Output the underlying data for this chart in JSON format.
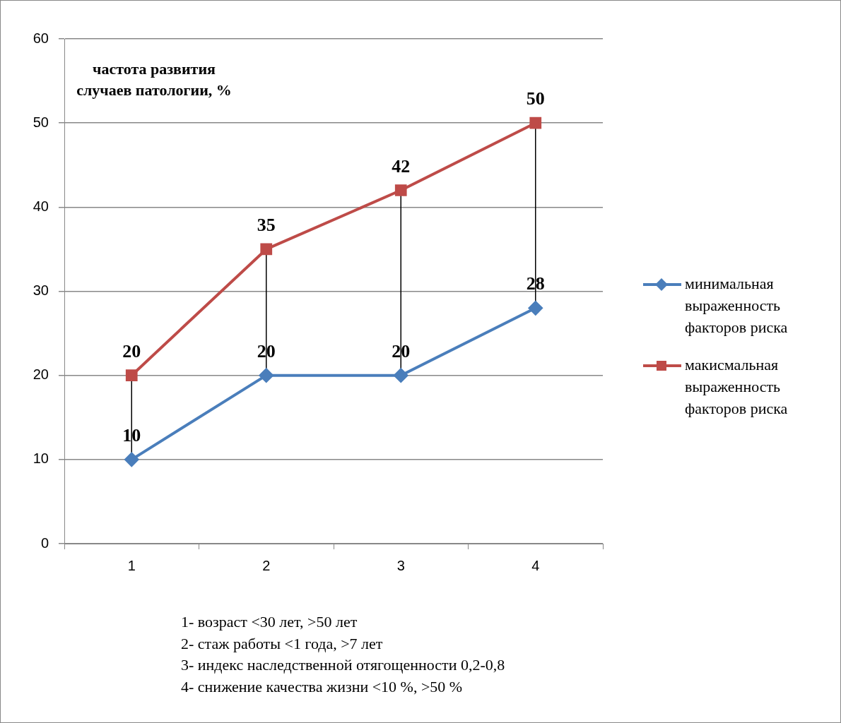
{
  "chart_data": {
    "type": "line",
    "ylabel": "частота развития случаев патологии, %",
    "categories": [
      "1",
      "2",
      "3",
      "4"
    ],
    "series": [
      {
        "name": "минимальная выраженность факторов риска",
        "color": "#4a7ebb",
        "marker": "diamond",
        "values": [
          10,
          20,
          20,
          28
        ]
      },
      {
        "name": "макисмальная выраженность факторов риска",
        "color": "#be4b48",
        "marker": "square",
        "values": [
          20,
          35,
          42,
          50
        ]
      }
    ],
    "ylim": [
      0,
      60
    ],
    "yticks": [
      0,
      10,
      20,
      30,
      40,
      50,
      60
    ],
    "grid": "y",
    "legend": "right",
    "data_labels": true,
    "annotations": [
      "1- возраст <30 лет, >50 лет",
      "2- стаж работы <1 года, >7 лет",
      "3- индекс наследственной отягощенности 0,2-0,8",
      "4- снижение качества жизни <10 %, >50 %"
    ]
  }
}
